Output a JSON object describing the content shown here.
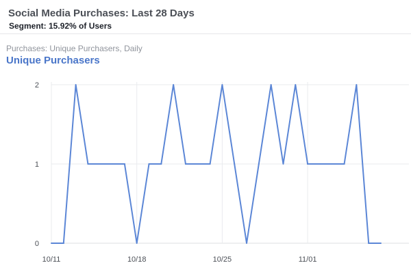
{
  "header": {
    "title": "Social Media Purchases: Last 28 Days",
    "segment": "Segment: 15.92% of Users"
  },
  "metric_caption": "Purchases: Unique Purchasers, Daily",
  "series_label": "Unique Purchasers",
  "colors": {
    "line": "#5b86d6",
    "series_label": "#4a76c9",
    "grid": "#e9ebee",
    "axis": "#dddfe2"
  },
  "chart_data": {
    "type": "line",
    "x": [
      "10/11",
      "10/12",
      "10/13",
      "10/14",
      "10/15",
      "10/16",
      "10/17",
      "10/18",
      "10/19",
      "10/20",
      "10/21",
      "10/22",
      "10/23",
      "10/24",
      "10/25",
      "10/26",
      "10/27",
      "10/28",
      "10/29",
      "10/30",
      "10/31",
      "11/01",
      "11/02",
      "11/03",
      "11/04",
      "11/05",
      "11/06",
      "11/07"
    ],
    "series": [
      {
        "values": [
          0,
          0,
          2,
          1,
          1,
          1,
          1,
          0,
          1,
          1,
          2,
          1,
          1,
          1,
          2,
          1,
          0,
          1,
          2,
          1,
          2,
          1,
          1,
          1,
          1,
          2,
          0,
          0
        ]
      }
    ],
    "x_tick_labels": [
      "10/11",
      "10/18",
      "10/25",
      "11/01"
    ],
    "y_tick_labels": [
      "0",
      "1",
      "2"
    ],
    "ylim": [
      0,
      2
    ],
    "grid": true,
    "xlabel": "",
    "ylabel": ""
  }
}
